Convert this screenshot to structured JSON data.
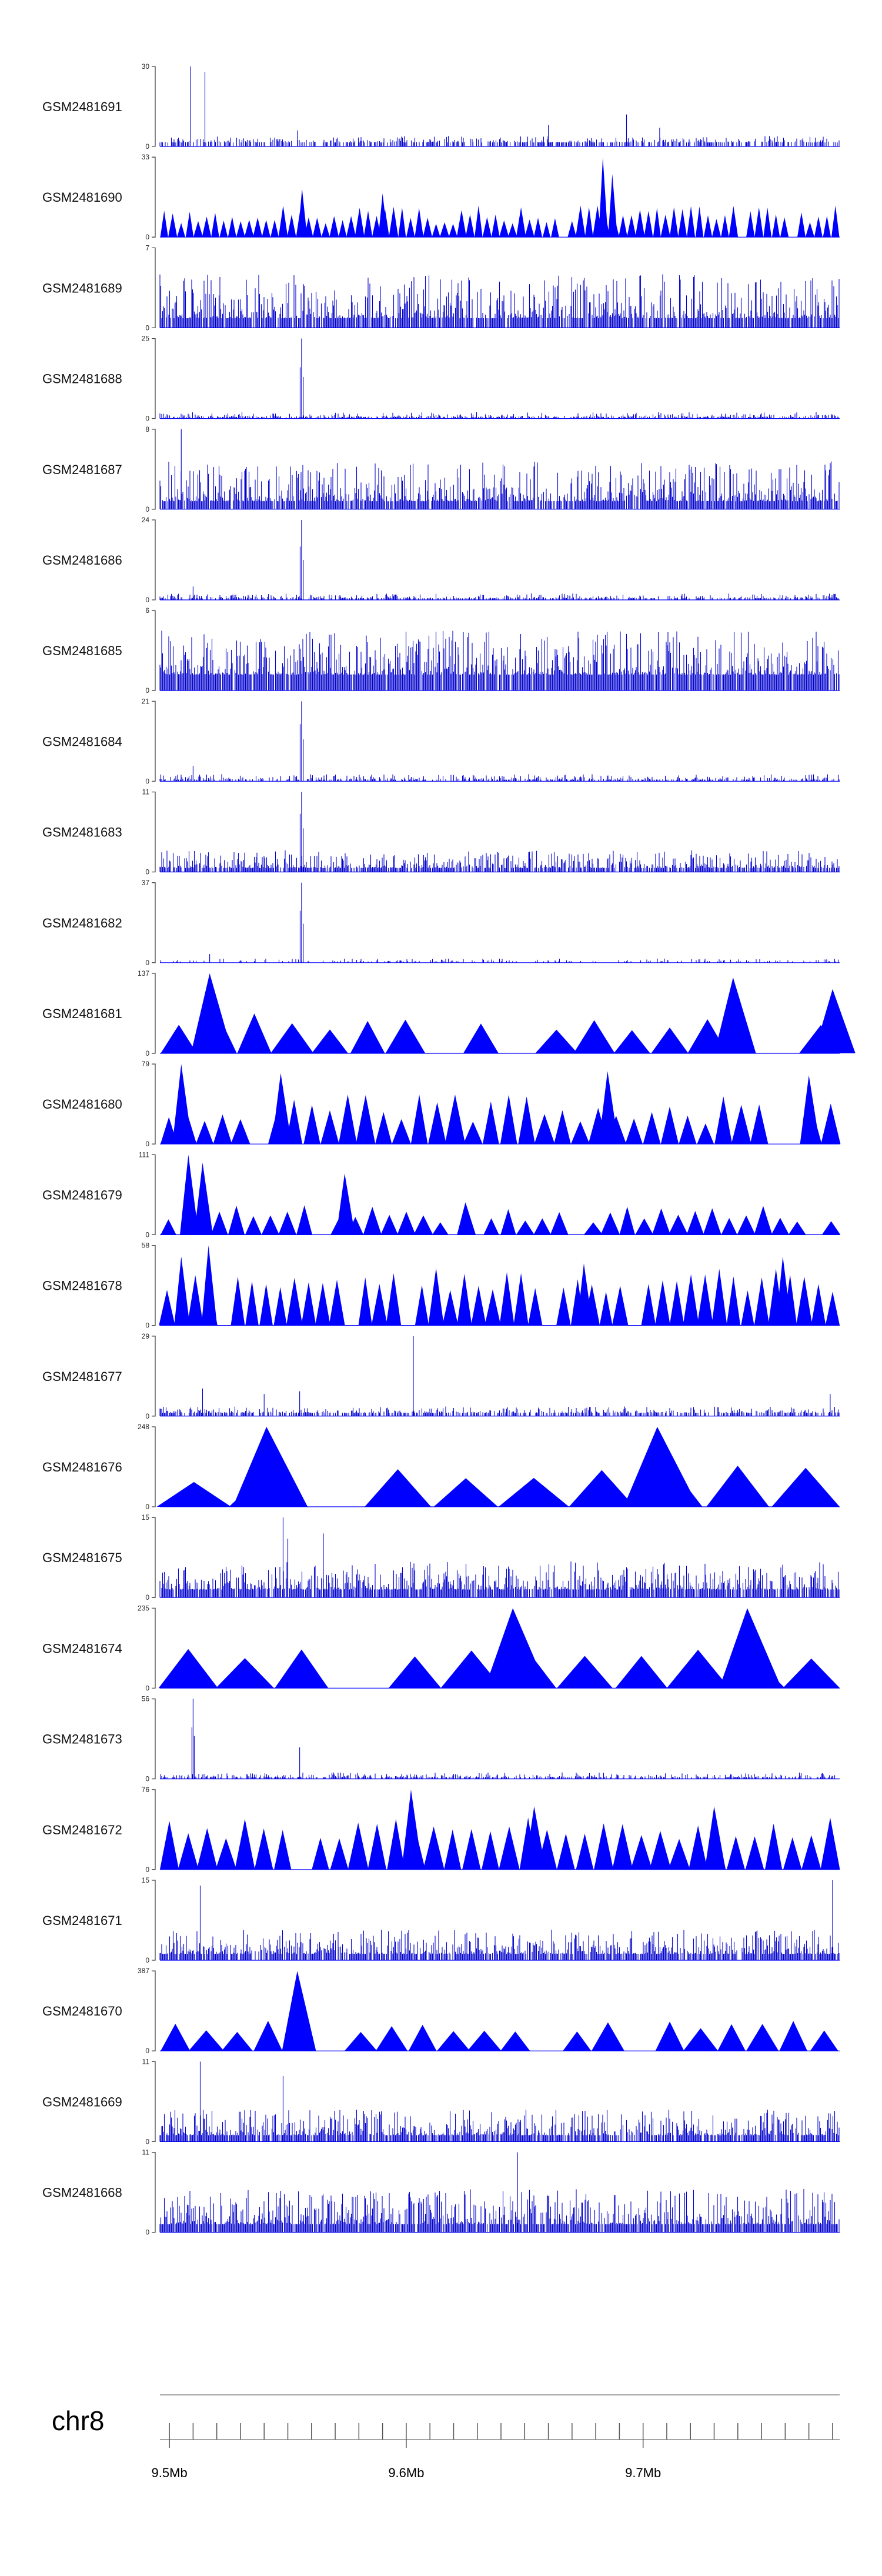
{
  "chart_data": {
    "type": "area",
    "title": "",
    "chromosome": "chr8",
    "x_range_mb": [
      9.496,
      9.783
    ],
    "x_ticks": [
      {
        "value": 9.5,
        "label": "9.5Mb"
      },
      {
        "value": 9.6,
        "label": "9.6Mb"
      },
      {
        "value": 9.7,
        "label": "9.7Mb"
      }
    ],
    "minor_tick_step_mb": 0.01,
    "colors": {
      "fill": "#0000ff",
      "bar": "#0000cc",
      "axis": "#444444",
      "ruler": "#888888"
    },
    "tracks": [
      {
        "name": "GSM2481691",
        "max": 30,
        "style": "bars",
        "seed": 1,
        "density": 0.55,
        "base": 0.05,
        "noise": 0.08,
        "peaks": [
          {
            "x": 9.509,
            "v": 30
          },
          {
            "x": 9.515,
            "v": 28
          },
          {
            "x": 9.554,
            "v": 6
          },
          {
            "x": 9.66,
            "v": 8
          },
          {
            "x": 9.693,
            "v": 12
          },
          {
            "x": 9.707,
            "v": 7
          }
        ]
      },
      {
        "name": "GSM2481690",
        "max": 33,
        "style": "tri",
        "seed": 2,
        "nTri": 80,
        "tmin": 0.15,
        "tmax": 0.4,
        "peaks": [
          {
            "x": 9.556,
            "v": 20
          },
          {
            "x": 9.59,
            "v": 18
          },
          {
            "x": 9.683,
            "v": 33
          },
          {
            "x": 9.687,
            "v": 26
          }
        ]
      },
      {
        "name": "GSM2481689",
        "max": 7,
        "style": "bars",
        "seed": 3,
        "density": 0.9,
        "base": 0.12,
        "noise": 0.55,
        "peaks": []
      },
      {
        "name": "GSM2481688",
        "max": 25,
        "style": "bars",
        "seed": 4,
        "density": 0.55,
        "base": 0.02,
        "noise": 0.06,
        "peaks": [
          {
            "x": 9.5558,
            "v": 25
          },
          {
            "x": 9.5552,
            "v": 16
          },
          {
            "x": 9.5565,
            "v": 13
          }
        ]
      },
      {
        "name": "GSM2481687",
        "max": 8,
        "style": "bars",
        "seed": 5,
        "density": 0.9,
        "base": 0.1,
        "noise": 0.5,
        "peaks": [
          {
            "x": 9.505,
            "v": 8
          }
        ]
      },
      {
        "name": "GSM2481686",
        "max": 24,
        "style": "bars",
        "seed": 6,
        "density": 0.55,
        "base": 0.02,
        "noise": 0.06,
        "peaks": [
          {
            "x": 9.5558,
            "v": 24
          },
          {
            "x": 9.5552,
            "v": 16
          },
          {
            "x": 9.5565,
            "v": 12
          },
          {
            "x": 9.51,
            "v": 4
          }
        ]
      },
      {
        "name": "GSM2481685",
        "max": 6,
        "style": "bars",
        "seed": 7,
        "density": 0.95,
        "base": 0.2,
        "noise": 0.55,
        "peaks": []
      },
      {
        "name": "GSM2481684",
        "max": 21,
        "style": "bars",
        "seed": 8,
        "density": 0.55,
        "base": 0.02,
        "noise": 0.07,
        "peaks": [
          {
            "x": 9.5558,
            "v": 21
          },
          {
            "x": 9.5552,
            "v": 15
          },
          {
            "x": 9.5565,
            "v": 11
          },
          {
            "x": 9.51,
            "v": 4
          }
        ]
      },
      {
        "name": "GSM2481683",
        "max": 11,
        "style": "bars",
        "seed": 9,
        "density": 0.8,
        "base": 0.05,
        "noise": 0.22,
        "peaks": [
          {
            "x": 9.5558,
            "v": 11
          },
          {
            "x": 9.5552,
            "v": 8
          },
          {
            "x": 9.5565,
            "v": 6
          }
        ]
      },
      {
        "name": "GSM2481682",
        "max": 37,
        "style": "bars",
        "seed": 10,
        "density": 0.5,
        "base": 0.01,
        "noise": 0.04,
        "peaks": [
          {
            "x": 9.5558,
            "v": 37
          },
          {
            "x": 9.5552,
            "v": 24
          },
          {
            "x": 9.5565,
            "v": 18
          },
          {
            "x": 9.517,
            "v": 4
          }
        ]
      },
      {
        "name": "GSM2481681",
        "max": 137,
        "style": "tri",
        "seed": 11,
        "nTri": 18,
        "tmin": 0.28,
        "tmax": 0.55,
        "peaks": [
          {
            "x": 9.517,
            "v": 137
          },
          {
            "x": 9.738,
            "v": 130
          },
          {
            "x": 9.78,
            "v": 110
          }
        ]
      },
      {
        "name": "GSM2481680",
        "max": 79,
        "style": "tri",
        "seed": 12,
        "nTri": 38,
        "tmin": 0.25,
        "tmax": 0.62,
        "peaks": [
          {
            "x": 9.505,
            "v": 79
          },
          {
            "x": 9.547,
            "v": 70
          },
          {
            "x": 9.685,
            "v": 72
          },
          {
            "x": 9.77,
            "v": 68
          }
        ]
      },
      {
        "name": "GSM2481679",
        "max": 111,
        "style": "tri",
        "seed": 13,
        "nTri": 40,
        "tmin": 0.15,
        "tmax": 0.38,
        "peaks": [
          {
            "x": 9.508,
            "v": 111
          },
          {
            "x": 9.514,
            "v": 100
          },
          {
            "x": 9.574,
            "v": 85
          },
          {
            "x": 9.625,
            "v": 45
          }
        ]
      },
      {
        "name": "GSM2481678",
        "max": 58,
        "style": "tri",
        "seed": 14,
        "nTri": 48,
        "tmin": 0.4,
        "tmax": 0.72,
        "peaks": [
          {
            "x": 9.5165,
            "v": 58
          },
          {
            "x": 9.505,
            "v": 50
          },
          {
            "x": 9.675,
            "v": 45
          },
          {
            "x": 9.759,
            "v": 50
          }
        ]
      },
      {
        "name": "GSM2481677",
        "max": 29,
        "style": "bars",
        "seed": 15,
        "density": 0.6,
        "base": 0.04,
        "noise": 0.08,
        "peaks": [
          {
            "x": 9.603,
            "v": 29
          },
          {
            "x": 9.514,
            "v": 10
          },
          {
            "x": 9.54,
            "v": 8
          },
          {
            "x": 9.555,
            "v": 9
          },
          {
            "x": 9.779,
            "v": 8
          }
        ]
      },
      {
        "name": "GSM2481676",
        "max": 248,
        "style": "tri",
        "seed": 16,
        "nTri": 10,
        "tmin": 0.3,
        "tmax": 0.55,
        "peaks": [
          {
            "x": 9.541,
            "v": 248
          },
          {
            "x": 9.706,
            "v": 248
          }
        ]
      },
      {
        "name": "GSM2481675",
        "max": 15,
        "style": "bars",
        "seed": 17,
        "density": 0.88,
        "base": 0.1,
        "noise": 0.35,
        "peaks": [
          {
            "x": 9.548,
            "v": 15
          },
          {
            "x": 9.55,
            "v": 11
          },
          {
            "x": 9.565,
            "v": 12
          }
        ]
      },
      {
        "name": "GSM2481674",
        "max": 235,
        "style": "tri",
        "seed": 18,
        "nTri": 12,
        "tmin": 0.32,
        "tmax": 0.5,
        "peaks": [
          {
            "x": 9.645,
            "v": 235
          },
          {
            "x": 9.744,
            "v": 235
          }
        ]
      },
      {
        "name": "GSM2481673",
        "max": 56,
        "style": "bars",
        "seed": 19,
        "density": 0.55,
        "base": 0.02,
        "noise": 0.06,
        "peaks": [
          {
            "x": 9.51,
            "v": 56
          },
          {
            "x": 9.5095,
            "v": 36
          },
          {
            "x": 9.5105,
            "v": 30
          },
          {
            "x": 9.555,
            "v": 22
          }
        ]
      },
      {
        "name": "GSM2481672",
        "max": 76,
        "style": "tri",
        "seed": 20,
        "nTri": 36,
        "tmin": 0.38,
        "tmax": 0.65,
        "peaks": [
          {
            "x": 9.602,
            "v": 76
          },
          {
            "x": 9.654,
            "v": 60
          },
          {
            "x": 9.73,
            "v": 60
          }
        ]
      },
      {
        "name": "GSM2481671",
        "max": 15,
        "style": "bars",
        "seed": 21,
        "density": 0.88,
        "base": 0.08,
        "noise": 0.3,
        "peaks": [
          {
            "x": 9.513,
            "v": 14
          },
          {
            "x": 9.78,
            "v": 15
          }
        ]
      },
      {
        "name": "GSM2481670",
        "max": 387,
        "style": "tri",
        "seed": 22,
        "nTri": 22,
        "tmin": 0.22,
        "tmax": 0.38,
        "peaks": [
          {
            "x": 9.554,
            "v": 387
          }
        ]
      },
      {
        "name": "GSM2481669",
        "max": 11,
        "style": "bars",
        "seed": 23,
        "density": 0.88,
        "base": 0.08,
        "noise": 0.32,
        "peaks": [
          {
            "x": 9.513,
            "v": 11
          },
          {
            "x": 9.548,
            "v": 9
          }
        ]
      },
      {
        "name": "GSM2481668",
        "max": 11,
        "style": "bars",
        "seed": 24,
        "density": 0.9,
        "base": 0.1,
        "noise": 0.45,
        "peaks": [
          {
            "x": 9.647,
            "v": 11
          }
        ]
      }
    ]
  }
}
